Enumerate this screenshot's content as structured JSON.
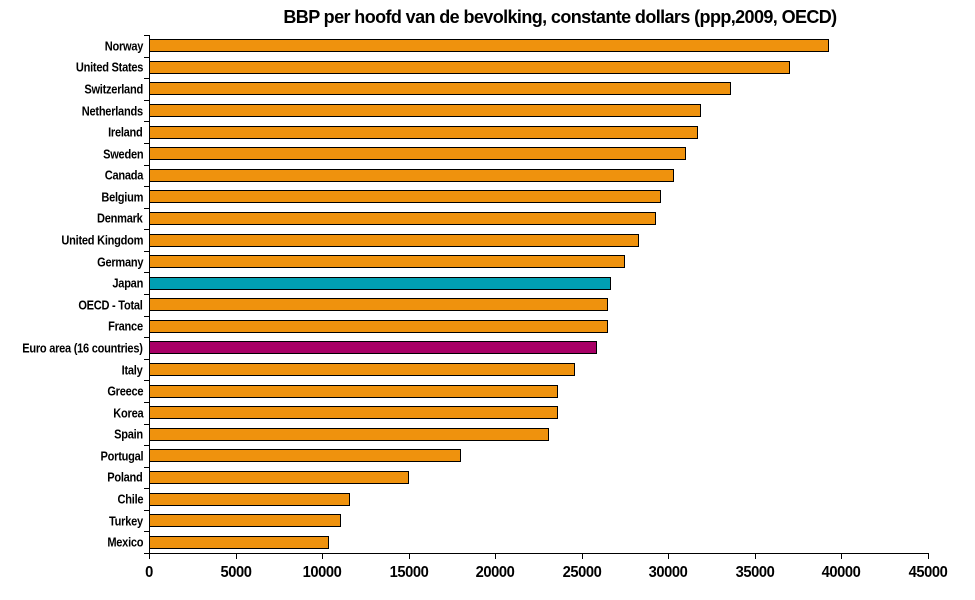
{
  "chart_data": {
    "type": "bar",
    "orientation": "horizontal",
    "title": "BBP per hoofd van de bevolking, constante dollars (ppp,2009, OECD)",
    "categories": [
      "Norway",
      "United States",
      "Switzerland",
      "Netherlands",
      "Ireland",
      "Sweden",
      "Canada",
      "Belgium",
      "Denmark",
      "United Kingdom",
      "Germany",
      "Japan",
      "OECD - Total",
      "France",
      "Euro area (16 countries)",
      "Italy",
      "Greece",
      "Korea",
      "Spain",
      "Portugal",
      "Poland",
      "Chile",
      "Turkey",
      "Mexico"
    ],
    "values": [
      39300,
      37000,
      33600,
      31900,
      31700,
      31000,
      30300,
      29600,
      29300,
      28300,
      27500,
      26700,
      26500,
      26500,
      25900,
      24600,
      23600,
      23600,
      23100,
      18000,
      15000,
      11600,
      11100,
      10400
    ],
    "bar_colors": [
      "#EF920D",
      "#EF920D",
      "#EF920D",
      "#EF920D",
      "#EF920D",
      "#EF920D",
      "#EF920D",
      "#EF920D",
      "#EF920D",
      "#EF920D",
      "#EF920D",
      "#009FB2",
      "#EF920D",
      "#EF920D",
      "#A80066",
      "#EF920D",
      "#EF920D",
      "#EF920D",
      "#EF920D",
      "#EF920D",
      "#EF920D",
      "#EF920D",
      "#EF920D",
      "#EF920D"
    ],
    "highlights": [
      {
        "category": "Japan",
        "color": "#009FB2"
      },
      {
        "category": "Euro area (16 countries)",
        "color": "#A80066"
      }
    ],
    "default_bar_color": "#EF920D",
    "bar_border_color": "#000000",
    "xlabel": "",
    "ylabel": "",
    "xlim": [
      0,
      45000
    ],
    "x_ticks": [
      0,
      5000,
      10000,
      15000,
      20000,
      25000,
      30000,
      35000,
      40000,
      45000
    ],
    "x_tick_labels": [
      "0",
      "5000",
      "10000",
      "15000",
      "20000",
      "25000",
      "30000",
      "35000",
      "40000",
      "45000"
    ],
    "grid": false,
    "legend": false,
    "axis_color": "#000000",
    "title_color": "#000000"
  }
}
